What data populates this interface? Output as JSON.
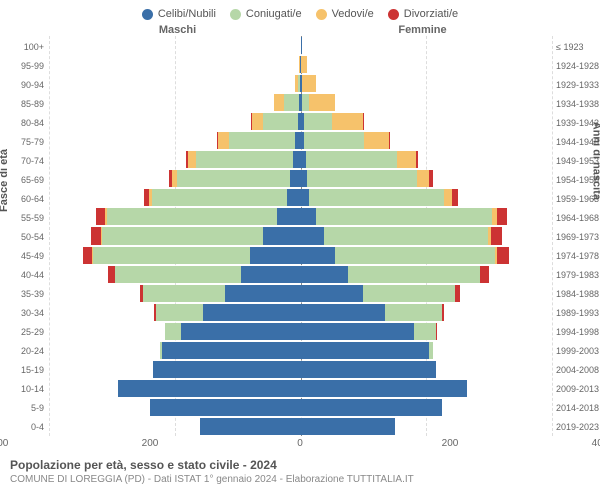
{
  "chart": {
    "type": "population-pyramid",
    "title": "Popolazione per età, sesso e stato civile - 2024",
    "subtitle": "COMUNE DI LOREGGIA (PD) - Dati ISTAT 1° gennaio 2024 - Elaborazione TUTTITALIA.IT",
    "left_axis_title": "Fasce di età",
    "right_axis_title": "Anni di nascita",
    "left_header": "Maschi",
    "right_header": "Femmine",
    "legend": [
      {
        "label": "Celibi/Nubili",
        "color": "#3a6fa8"
      },
      {
        "label": "Coniugati/e",
        "color": "#b6d7a8"
      },
      {
        "label": "Vedovi/e",
        "color": "#f6c26b"
      },
      {
        "label": "Divorziati/e",
        "color": "#cc3333"
      }
    ],
    "xmax": 400,
    "xticks": [
      400,
      200,
      0,
      200,
      400
    ],
    "age_labels": [
      "100+",
      "95-99",
      "90-94",
      "85-89",
      "80-84",
      "75-79",
      "70-74",
      "65-69",
      "60-64",
      "55-59",
      "50-54",
      "45-49",
      "40-44",
      "35-39",
      "30-34",
      "25-29",
      "20-24",
      "15-19",
      "10-14",
      "5-9",
      "0-4"
    ],
    "year_labels": [
      "≤ 1923",
      "1924-1928",
      "1929-1933",
      "1934-1938",
      "1939-1943",
      "1944-1948",
      "1949-1953",
      "1954-1958",
      "1959-1963",
      "1964-1968",
      "1969-1973",
      "1974-1978",
      "1979-1983",
      "1984-1988",
      "1989-1993",
      "1994-1998",
      "1999-2003",
      "2004-2008",
      "2009-2013",
      "2014-2018",
      "2019-2023"
    ],
    "data": {
      "male": [
        {
          "celibi": 0,
          "coniugati": 0,
          "vedovi": 0,
          "divorziati": 0
        },
        {
          "celibi": 1,
          "coniugati": 0,
          "vedovi": 2,
          "divorziati": 0
        },
        {
          "celibi": 1,
          "coniugati": 3,
          "vedovi": 5,
          "divorziati": 0
        },
        {
          "celibi": 2,
          "coniugati": 25,
          "vedovi": 15,
          "divorziati": 0
        },
        {
          "celibi": 4,
          "coniugati": 55,
          "vedovi": 18,
          "divorziati": 1
        },
        {
          "celibi": 8,
          "coniugati": 105,
          "vedovi": 18,
          "divorziati": 2
        },
        {
          "celibi": 12,
          "coniugati": 155,
          "vedovi": 12,
          "divorziati": 3
        },
        {
          "celibi": 16,
          "coniugati": 180,
          "vedovi": 8,
          "divorziati": 5
        },
        {
          "celibi": 22,
          "coniugati": 215,
          "vedovi": 4,
          "divorziati": 8
        },
        {
          "celibi": 38,
          "coniugati": 270,
          "vedovi": 3,
          "divorziati": 14
        },
        {
          "celibi": 60,
          "coniugati": 255,
          "vedovi": 2,
          "divorziati": 16
        },
        {
          "celibi": 80,
          "coniugati": 250,
          "vedovi": 1,
          "divorziati": 15
        },
        {
          "celibi": 95,
          "coniugati": 200,
          "vedovi": 0,
          "divorziati": 12
        },
        {
          "celibi": 120,
          "coniugati": 130,
          "vedovi": 0,
          "divorziati": 6
        },
        {
          "celibi": 155,
          "coniugati": 75,
          "vedovi": 0,
          "divorziati": 3
        },
        {
          "celibi": 190,
          "coniugati": 25,
          "vedovi": 0,
          "divorziati": 1
        },
        {
          "celibi": 220,
          "coniugati": 3,
          "vedovi": 0,
          "divorziati": 0
        },
        {
          "celibi": 235,
          "coniugati": 0,
          "vedovi": 0,
          "divorziati": 0
        },
        {
          "celibi": 290,
          "coniugati": 0,
          "vedovi": 0,
          "divorziati": 0
        },
        {
          "celibi": 240,
          "coniugati": 0,
          "vedovi": 0,
          "divorziati": 0
        },
        {
          "celibi": 160,
          "coniugati": 0,
          "vedovi": 0,
          "divorziati": 0
        }
      ],
      "female": [
        {
          "celibi": 1,
          "coniugati": 0,
          "vedovi": 0,
          "divorziati": 0
        },
        {
          "celibi": 1,
          "coniugati": 0,
          "vedovi": 10,
          "divorziati": 0
        },
        {
          "celibi": 2,
          "coniugati": 1,
          "vedovi": 22,
          "divorziati": 0
        },
        {
          "celibi": 3,
          "coniugati": 10,
          "vedovi": 42,
          "divorziati": 0
        },
        {
          "celibi": 5,
          "coniugati": 45,
          "vedovi": 50,
          "divorziati": 1
        },
        {
          "celibi": 6,
          "coniugati": 95,
          "vedovi": 40,
          "divorziati": 2
        },
        {
          "celibi": 8,
          "coniugati": 145,
          "vedovi": 30,
          "divorziati": 4
        },
        {
          "celibi": 10,
          "coniugati": 175,
          "vedovi": 20,
          "divorziati": 6
        },
        {
          "celibi": 14,
          "coniugati": 215,
          "vedovi": 12,
          "divorziati": 10
        },
        {
          "celibi": 24,
          "coniugati": 280,
          "vedovi": 8,
          "divorziati": 16
        },
        {
          "celibi": 38,
          "coniugati": 260,
          "vedovi": 5,
          "divorziati": 18
        },
        {
          "celibi": 55,
          "coniugati": 255,
          "vedovi": 3,
          "divorziati": 18
        },
        {
          "celibi": 75,
          "coniugati": 210,
          "vedovi": 1,
          "divorziati": 14
        },
        {
          "celibi": 100,
          "coniugati": 145,
          "vedovi": 0,
          "divorziati": 8
        },
        {
          "celibi": 135,
          "coniugati": 90,
          "vedovi": 0,
          "divorziati": 4
        },
        {
          "celibi": 180,
          "coniugati": 35,
          "vedovi": 0,
          "divorziati": 2
        },
        {
          "celibi": 205,
          "coniugati": 5,
          "vedovi": 0,
          "divorziati": 0
        },
        {
          "celibi": 215,
          "coniugati": 0,
          "vedovi": 0,
          "divorziati": 0
        },
        {
          "celibi": 265,
          "coniugati": 0,
          "vedovi": 0,
          "divorziati": 0
        },
        {
          "celibi": 225,
          "coniugati": 0,
          "vedovi": 0,
          "divorziati": 0
        },
        {
          "celibi": 150,
          "coniugati": 0,
          "vedovi": 0,
          "divorziati": 0
        }
      ]
    },
    "background_color": "#ffffff",
    "grid_color": "#dddddd"
  }
}
